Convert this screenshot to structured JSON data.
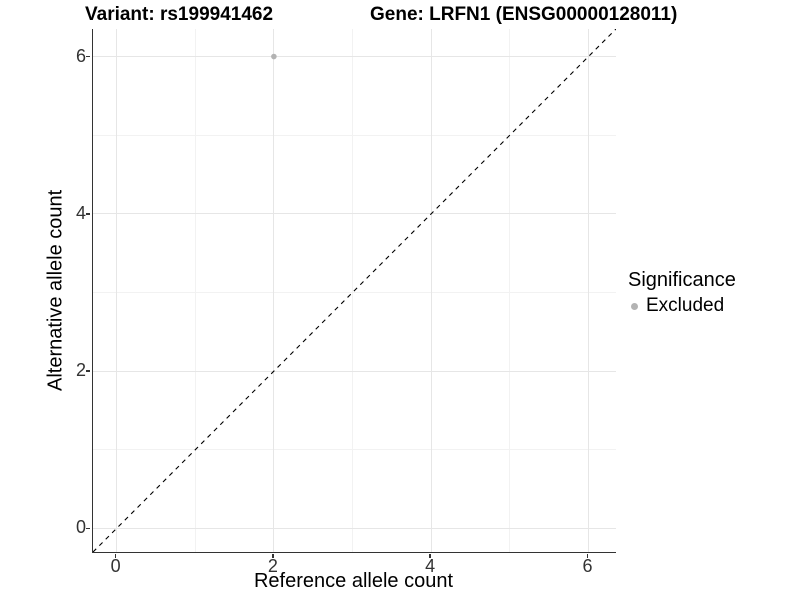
{
  "chart_data": {
    "type": "scatter",
    "title_left": "Variant: rs199941462",
    "title_right": "Gene: LRFN1 (ENSG00000128011)",
    "xlabel": "Reference allele count",
    "ylabel": "Alternative allele count",
    "xlim": [
      -0.3,
      6.35
    ],
    "ylim": [
      -0.3,
      6.35
    ],
    "x_ticks": [
      0,
      2,
      4,
      6
    ],
    "y_ticks": [
      0,
      2,
      4,
      6
    ],
    "x_minor_ticks": [
      1,
      3,
      5
    ],
    "y_minor_ticks": [
      1,
      3,
      5
    ],
    "grid": true,
    "points": [
      {
        "x": 2,
        "y": 6,
        "series": "Excluded"
      }
    ],
    "reference_line": {
      "slope": 1,
      "intercept": 0,
      "style": "dashed",
      "color": "#000000"
    },
    "legend": {
      "title": "Significance",
      "position": "right",
      "entries": [
        {
          "label": "Excluded",
          "color": "#b3b3b3"
        }
      ]
    },
    "colors": {
      "grid_major": "#e6e6e6",
      "grid_minor": "#f2f2f2",
      "axis_line": "#333333",
      "tick_label": "#333333"
    }
  }
}
